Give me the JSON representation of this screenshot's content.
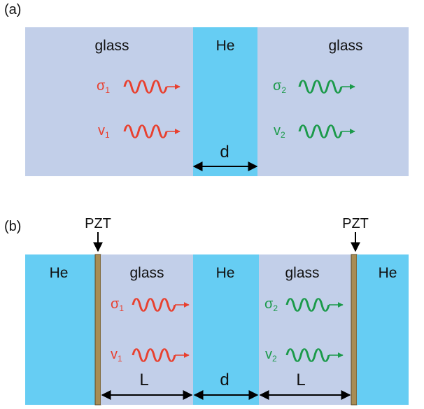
{
  "panel_a": {
    "label": "(a)",
    "left_region": "glass",
    "middle_region": "He",
    "right_region": "glass",
    "wave_sigma_left": {
      "symbol": "σ",
      "sub": "1"
    },
    "wave_v_left": {
      "symbol": "v",
      "sub": "1"
    },
    "wave_sigma_right": {
      "symbol": "σ",
      "sub": "2"
    },
    "wave_v_right": {
      "symbol": "v",
      "sub": "2"
    },
    "gap_label": "d"
  },
  "panel_b": {
    "label": "(b)",
    "transducer_left": "PZT",
    "transducer_right": "PZT",
    "outer_left": "He",
    "glass_left": "glass",
    "middle": "He",
    "glass_right": "glass",
    "outer_right": "He",
    "wave_sigma_left": {
      "symbol": "σ",
      "sub": "1"
    },
    "wave_v_left": {
      "symbol": "v",
      "sub": "1"
    },
    "wave_sigma_right": {
      "symbol": "σ",
      "sub": "2"
    },
    "wave_v_right": {
      "symbol": "v",
      "sub": "2"
    },
    "len_left": "L",
    "len_mid": "d",
    "len_right": "L"
  },
  "colors": {
    "glass": "#c2cfe9",
    "helium": "#66cdf3",
    "pzt": "#a88c54",
    "wave_left": "#e8402f",
    "wave_right": "#1b9a4a",
    "arrow": "#000000"
  }
}
